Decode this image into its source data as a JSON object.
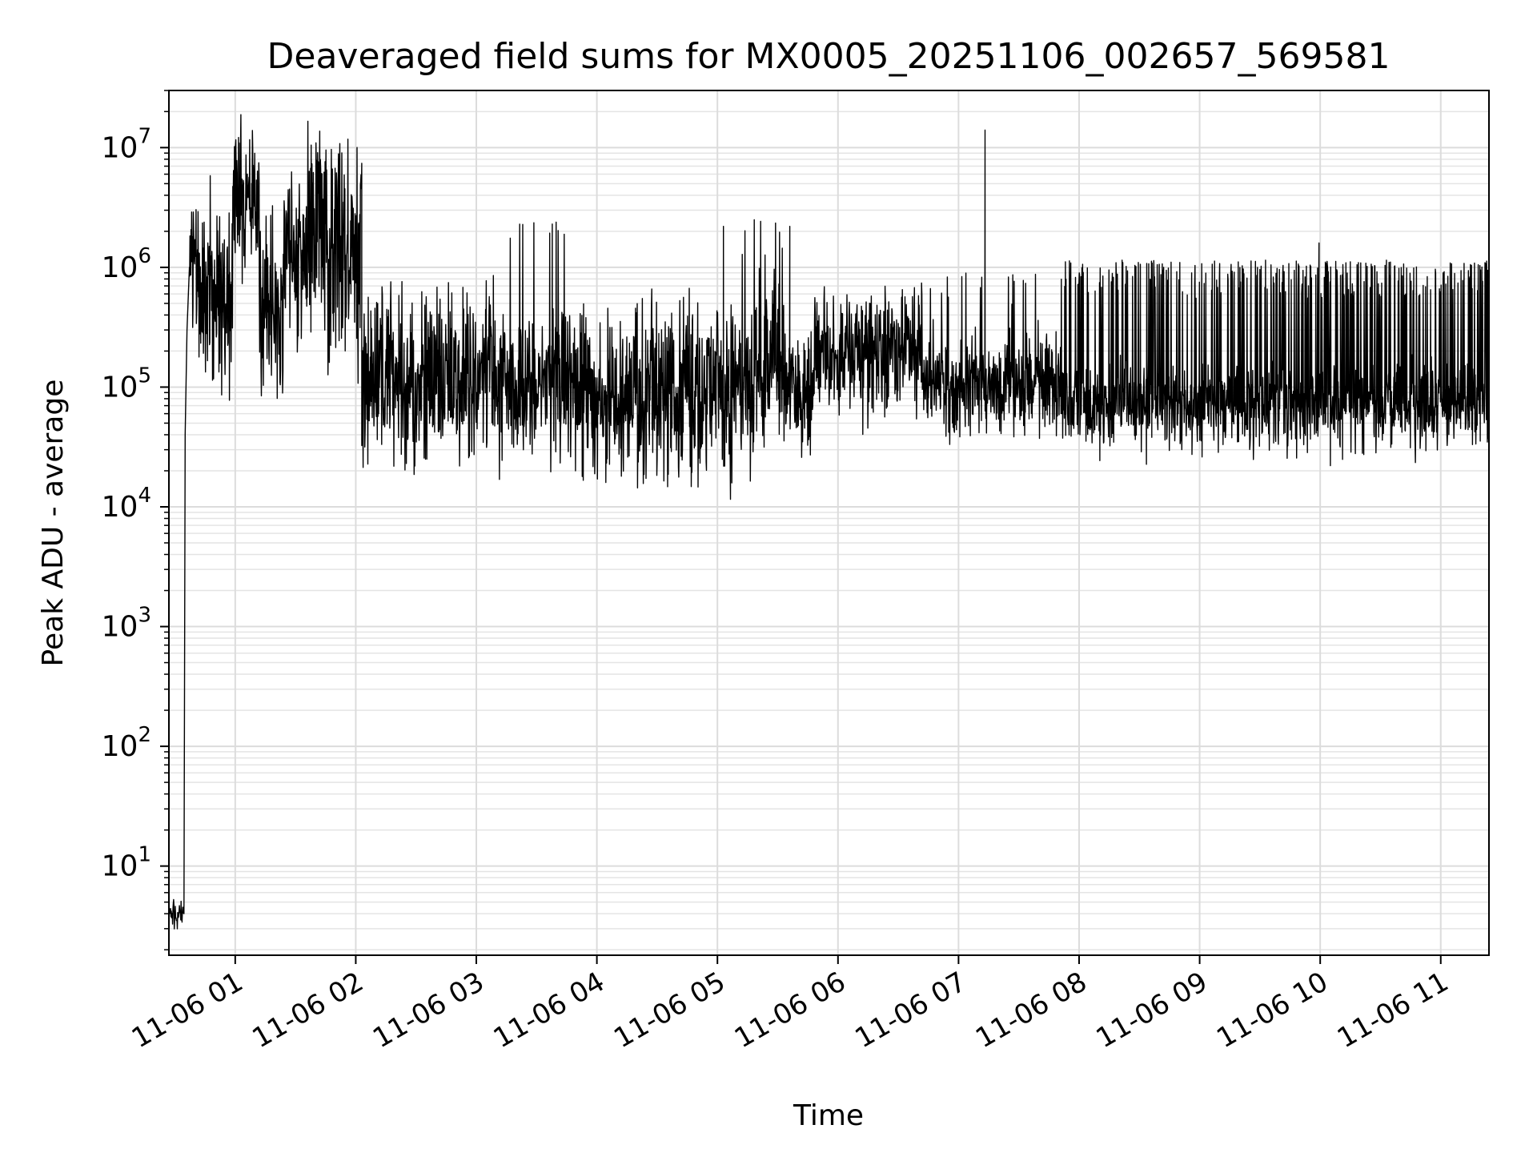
{
  "chart_data": {
    "type": "line",
    "title": "Deaveraged field sums for MX0005_20251106_002657_569581",
    "xlabel": "Time",
    "ylabel": "Peak ADU - average",
    "yscale": "log",
    "ylim": [
      1.8,
      30000000
    ],
    "xlim_hours": [
      0.45,
      11.4
    ],
    "grid": true,
    "line_color": "#000000",
    "x_ticks": [
      {
        "label": "11-06 01",
        "hour": 1
      },
      {
        "label": "11-06 02",
        "hour": 2
      },
      {
        "label": "11-06 03",
        "hour": 3
      },
      {
        "label": "11-06 04",
        "hour": 4
      },
      {
        "label": "11-06 05",
        "hour": 5
      },
      {
        "label": "11-06 06",
        "hour": 6
      },
      {
        "label": "11-06 07",
        "hour": 7
      },
      {
        "label": "11-06 08",
        "hour": 8
      },
      {
        "label": "11-06 09",
        "hour": 9
      },
      {
        "label": "11-06 10",
        "hour": 10
      },
      {
        "label": "11-06 11",
        "hour": 11
      }
    ],
    "y_ticks": [
      {
        "base": "10",
        "exp": "1",
        "value": 10
      },
      {
        "base": "10",
        "exp": "2",
        "value": 100
      },
      {
        "base": "10",
        "exp": "3",
        "value": 1000
      },
      {
        "base": "10",
        "exp": "4",
        "value": 10000
      },
      {
        "base": "10",
        "exp": "5",
        "value": 100000
      },
      {
        "base": "10",
        "exp": "6",
        "value": 1000000
      },
      {
        "base": "10",
        "exp": "7",
        "value": 10000000
      }
    ],
    "series": [
      {
        "name": "Peak ADU - average",
        "segments": [
          {
            "start": 0.45,
            "end": 0.58,
            "base": 4,
            "spread": 0.05,
            "spike_rate": 0.0,
            "spike_level": 4.5
          },
          {
            "start": 0.58,
            "end": 0.7,
            "base": 1000000,
            "spread": 0.25,
            "spike_rate": 0.05,
            "spike_level": 1800000
          },
          {
            "start": 0.7,
            "end": 0.98,
            "base": 600000,
            "spread": 0.35,
            "spike_rate": 0.05,
            "spike_level": 1200000
          },
          {
            "start": 0.98,
            "end": 1.2,
            "base": 4000000,
            "spread": 0.3,
            "spike_rate": 0.05,
            "spike_level": 7000000
          },
          {
            "start": 1.2,
            "end": 1.4,
            "base": 400000,
            "spread": 0.4,
            "spike_rate": 0.05,
            "spike_level": 900000
          },
          {
            "start": 1.4,
            "end": 1.6,
            "base": 1200000,
            "spread": 0.35,
            "spike_rate": 0.06,
            "spike_level": 3000000
          },
          {
            "start": 1.6,
            "end": 1.75,
            "base": 2000000,
            "spread": 0.35,
            "spike_rate": 0.08,
            "spike_level": 10000000
          },
          {
            "start": 1.75,
            "end": 2.05,
            "base": 1500000,
            "spread": 0.45,
            "spike_rate": 0.08,
            "spike_level": 8000000
          },
          {
            "start": 2.05,
            "end": 2.5,
            "base": 110000,
            "spread": 0.35,
            "spike_rate": 0.04,
            "spike_level": 600000
          },
          {
            "start": 2.5,
            "end": 3.2,
            "base": 110000,
            "spread": 0.32,
            "spike_rate": 0.04,
            "spike_level": 800000
          },
          {
            "start": 3.2,
            "end": 3.8,
            "base": 100000,
            "spread": 0.3,
            "spike_rate": 0.03,
            "spike_level": 2300000
          },
          {
            "start": 3.8,
            "end": 4.8,
            "base": 80000,
            "spread": 0.35,
            "spike_rate": 0.03,
            "spike_level": 600000
          },
          {
            "start": 4.8,
            "end": 5.3,
            "base": 90000,
            "spread": 0.33,
            "spike_rate": 0.04,
            "spike_level": 2200000
          },
          {
            "start": 5.3,
            "end": 5.55,
            "base": 150000,
            "spread": 0.3,
            "spike_rate": 0.04,
            "spike_level": 2200000
          },
          {
            "start": 5.55,
            "end": 5.8,
            "base": 90000,
            "spread": 0.25,
            "spike_rate": 0.03,
            "spike_level": 300000
          },
          {
            "start": 5.8,
            "end": 6.7,
            "base": 200000,
            "spread": 0.25,
            "spike_rate": 0.03,
            "spike_level": 500000
          },
          {
            "start": 6.7,
            "end": 7.85,
            "base": 100000,
            "spread": 0.2,
            "spike_rate": 0.03,
            "spike_level": 800000
          },
          {
            "start": 7.85,
            "end": 11.4,
            "base": 70000,
            "spread": 0.18,
            "spike_rate": 0.22,
            "spike_level": 1000000
          }
        ],
        "spikes": [
          {
            "hour": 7.22,
            "value": 14000000
          },
          {
            "hour": 1.63,
            "value": 10500000
          },
          {
            "hour": 3.63,
            "value": 2300000
          },
          {
            "hour": 5.05,
            "value": 2200000
          },
          {
            "hour": 5.6,
            "value": 2200000
          },
          {
            "hour": 9.99,
            "value": 1600000
          }
        ]
      }
    ]
  }
}
